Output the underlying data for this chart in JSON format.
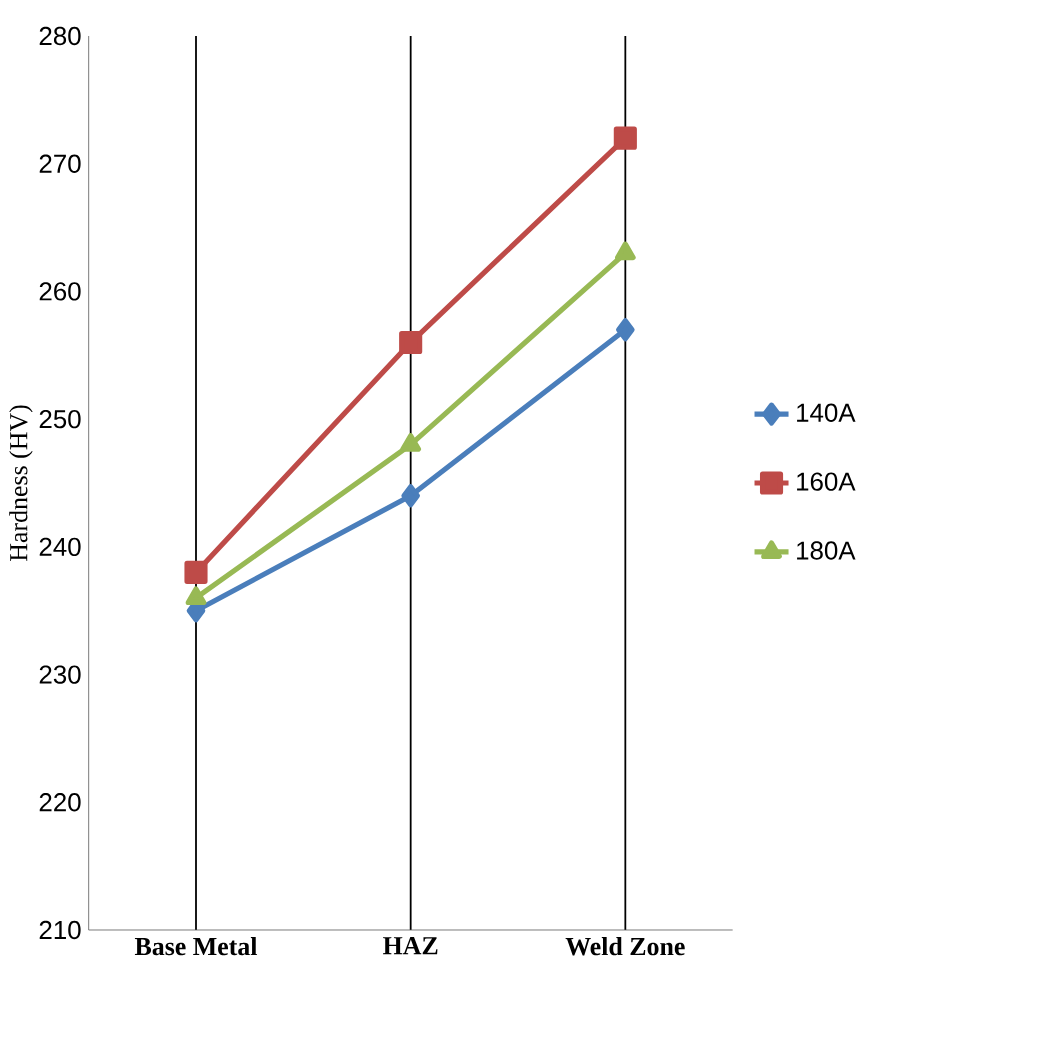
{
  "chart_data": {
    "type": "line",
    "ylabel": "Hardness (HV)",
    "categories": [
      "Base Metal",
      "HAZ",
      "Weld Zone"
    ],
    "series": [
      {
        "name": "140A",
        "color": "#4a7ebb",
        "marker": "diamond",
        "values": [
          235,
          244,
          257
        ]
      },
      {
        "name": "160A",
        "color": "#be4b48",
        "marker": "square",
        "values": [
          238,
          256,
          272
        ]
      },
      {
        "name": "180A",
        "color": "#98b954",
        "marker": "triangle",
        "values": [
          236,
          248,
          263
        ]
      }
    ],
    "ylim": [
      210,
      280
    ],
    "yticks": [
      210,
      220,
      230,
      240,
      250,
      260,
      270,
      280
    ],
    "grid": "x",
    "legend": "right"
  }
}
